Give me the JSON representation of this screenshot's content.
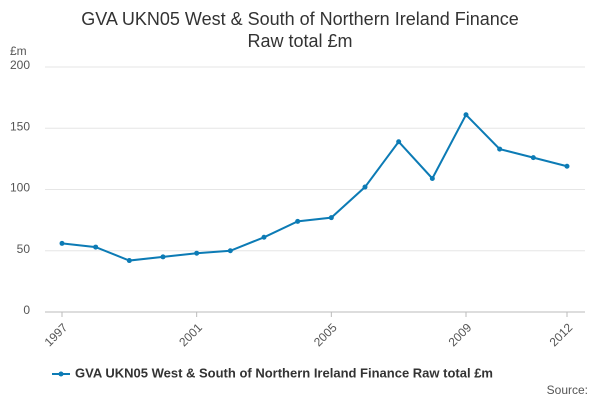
{
  "chart_data": {
    "type": "line",
    "title": "GVA UKN05 West & South of Northern Ireland Finance Raw total £m",
    "y_label": "£m",
    "source": "Source:",
    "x": [
      1997,
      1998,
      1999,
      2000,
      2001,
      2002,
      2003,
      2004,
      2005,
      2006,
      2007,
      2008,
      2009,
      2010,
      2011,
      2012
    ],
    "series": [
      {
        "name": "GVA UKN05 West & South of Northern Ireland Finance Raw total £m",
        "color": "#0c7bb5",
        "values": [
          56,
          53,
          42,
          45,
          48,
          50,
          61,
          74,
          77,
          102,
          139,
          109,
          161,
          133,
          126,
          119
        ]
      }
    ],
    "xlim": [
      1997,
      2012
    ],
    "xticks": [
      1997,
      2001,
      2005,
      2009,
      2012
    ],
    "ylim": [
      0,
      200
    ],
    "yticks": [
      0,
      50,
      100,
      150,
      200
    ],
    "grid": true,
    "legend": "bottom"
  }
}
